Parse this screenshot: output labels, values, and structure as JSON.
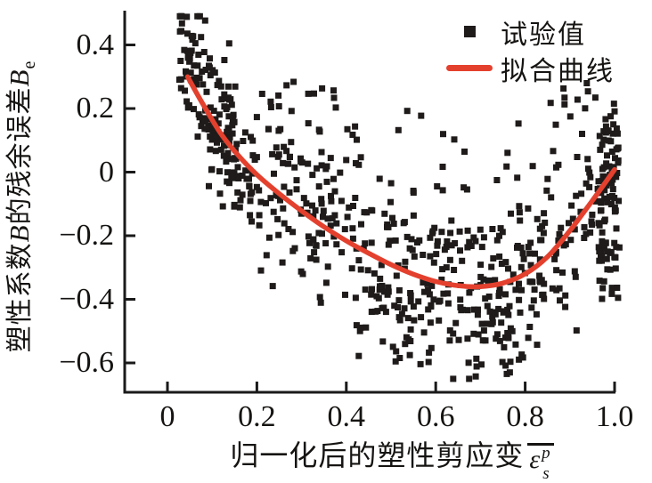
{
  "colors": {
    "background": "#ffffff",
    "axis": "#1a1a1a",
    "scatter": "#1f1b1a",
    "curve": "#e4402e",
    "text": "#161412"
  },
  "ylabel": {
    "part1": "塑性系数",
    "italic1": "B",
    "part2": "的残余误差",
    "italic2": "B",
    "subscript": "e"
  },
  "xlabel": {
    "text": "归一化后的塑性剪应变",
    "symbol": {
      "base": "ε",
      "sub": "s",
      "sup": "p",
      "overbar": true
    }
  },
  "legend": {
    "position": "top-right",
    "items": [
      {
        "label": "试验值",
        "marker": "square"
      },
      {
        "label": "拟合曲线",
        "marker": "line"
      }
    ]
  },
  "chart_data": {
    "type": "scatter",
    "title": "",
    "xlabel": "归一化后的塑性剪应变 ε̄sp",
    "ylabel": "塑性系数B的残余误差 Be",
    "xlim": [
      -0.096,
      1.0
    ],
    "ylim": [
      -0.69,
      0.51
    ],
    "grid": false,
    "ticks_direction": "in",
    "x_ticks": {
      "values": [
        0,
        0.2,
        0.4,
        0.6,
        0.8,
        1.0
      ],
      "labels": [
        "0",
        "0.2",
        "0.4",
        "0.6",
        "0.8",
        "1.0"
      ]
    },
    "y_ticks": {
      "values": [
        0.4,
        0.2,
        0,
        -0.2,
        -0.4,
        -0.6
      ],
      "labels": [
        "0.4",
        "0.2",
        "0",
        "−0.2",
        "−0.4",
        "−0.6"
      ]
    },
    "series": [
      {
        "name": "试验值",
        "type": "scatter",
        "marker": "square",
        "color": "#1f1b1a",
        "note": "≈800 residual points in a U-shaped band; dense cluster near (0.05–0.15, 0.1–0.49), band follows fit curve with ±0.2 spread, lowest points ≈ −0.63 near x=0.6–0.75, dense vertical strip at x≈0.97–1.01 spanning y −0.40–0.14; generated procedurally from scatter_gen"
      },
      {
        "name": "拟合曲线",
        "type": "line",
        "color": "#e4402e",
        "points_ref": "fit_curve_points"
      }
    ],
    "fit_curve_points": [
      [
        0.045,
        0.3
      ],
      [
        0.08,
        0.212
      ],
      [
        0.12,
        0.12
      ],
      [
        0.16,
        0.05
      ],
      [
        0.2,
        -0.008
      ],
      [
        0.25,
        -0.068
      ],
      [
        0.3,
        -0.122
      ],
      [
        0.35,
        -0.172
      ],
      [
        0.4,
        -0.216
      ],
      [
        0.45,
        -0.255
      ],
      [
        0.5,
        -0.291
      ],
      [
        0.55,
        -0.321
      ],
      [
        0.6,
        -0.344
      ],
      [
        0.65,
        -0.357
      ],
      [
        0.7,
        -0.36
      ],
      [
        0.75,
        -0.349
      ],
      [
        0.8,
        -0.32
      ],
      [
        0.85,
        -0.266
      ],
      [
        0.9,
        -0.184
      ],
      [
        0.95,
        -0.09
      ],
      [
        1.0,
        0.008
      ]
    ],
    "fit_curve_summary": "starts (0.045, 0.30), crosses 0 near x≈0.2, minimum ≈ (0.69, −0.36), rises to (1.0, 0.01)",
    "scatter_gen": {
      "seed": 1337,
      "marker_size_px": 7,
      "clip_y": [
        -0.65,
        0.49
      ],
      "groups": [
        {
          "mode": "cluster",
          "n": 115,
          "x_min": 0.025,
          "x_max": 0.155,
          "bias": 0.06,
          "std": 0.105
        },
        {
          "mode": "band",
          "n": 450,
          "x_min": 0.08,
          "x_max": 1.012,
          "bias": 0.015,
          "std": 0.12
        },
        {
          "mode": "upper",
          "n": 80,
          "x_min": 0.22,
          "x_max": 1.005,
          "off_min": 0.1,
          "off_max": 0.52,
          "y_cap": 0.285
        },
        {
          "mode": "lower",
          "n": 70,
          "x_min": 0.42,
          "x_max": 0.88,
          "off_min": 0.05,
          "off_max": 0.3
        },
        {
          "mode": "strip",
          "n": 80,
          "x_min": 0.962,
          "x_max": 1.014,
          "y_min": -0.4,
          "y_max": 0.14
        }
      ]
    }
  }
}
